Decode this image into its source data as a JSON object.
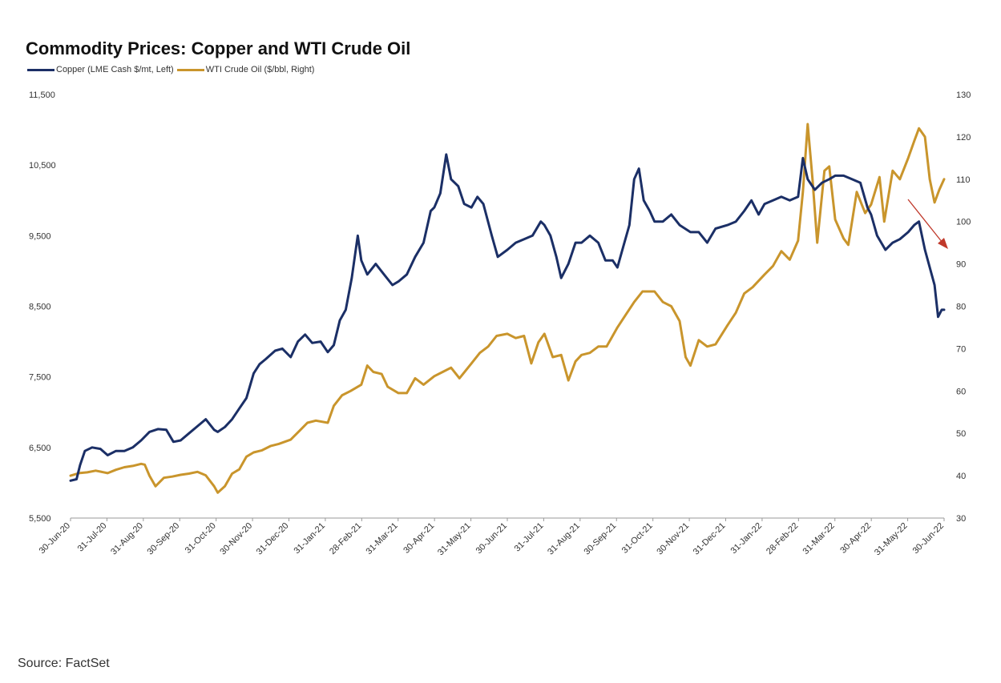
{
  "chart_data": {
    "type": "line",
    "title": "Commodity Prices: Copper and WTI Crude Oil",
    "xlabel": "",
    "ylabel_left": "",
    "ylabel_right": "",
    "grid": false,
    "legend_position": "top-left",
    "x_tick_labels": [
      "30-Jun-20",
      "31-Jul-20",
      "31-Aug-20",
      "30-Sep-20",
      "31-Oct-20",
      "30-Nov-20",
      "31-Dec-20",
      "31-Jan-21",
      "28-Feb-21",
      "31-Mar-21",
      "30-Apr-21",
      "31-May-21",
      "30-Jun-21",
      "31-Jul-21",
      "31-Aug-21",
      "30-Sep-21",
      "31-Oct-21",
      "30-Nov-21",
      "31-Dec-21",
      "31-Jan-22",
      "28-Feb-22",
      "31-Mar-22",
      "30-Apr-22",
      "31-May-22",
      "30-Jun-22"
    ],
    "y_left": {
      "ticks": [
        "5,500",
        "6,500",
        "7,500",
        "8,500",
        "9,500",
        "10,500",
        "11,500"
      ],
      "lim": [
        5500,
        11500
      ]
    },
    "y_right": {
      "ticks": [
        "30",
        "40",
        "50",
        "60",
        "70",
        "80",
        "90",
        "100",
        "110",
        "120",
        "130"
      ],
      "lim": [
        30,
        130
      ]
    },
    "series": [
      {
        "name": "Copper (LME Cash $/mt, Left)",
        "axis": "left",
        "color": "#1b2f66",
        "points": [
          [
            "2020-06-30",
            6030
          ],
          [
            "2020-07-05",
            6050
          ],
          [
            "2020-07-08",
            6250
          ],
          [
            "2020-07-12",
            6450
          ],
          [
            "2020-07-18",
            6500
          ],
          [
            "2020-07-25",
            6480
          ],
          [
            "2020-07-31",
            6390
          ],
          [
            "2020-08-07",
            6450
          ],
          [
            "2020-08-14",
            6450
          ],
          [
            "2020-08-21",
            6500
          ],
          [
            "2020-08-28",
            6600
          ],
          [
            "2020-09-04",
            6720
          ],
          [
            "2020-09-11",
            6760
          ],
          [
            "2020-09-18",
            6750
          ],
          [
            "2020-09-24",
            6580
          ],
          [
            "2020-09-30",
            6600
          ],
          [
            "2020-10-07",
            6700
          ],
          [
            "2020-10-14",
            6800
          ],
          [
            "2020-10-21",
            6900
          ],
          [
            "2020-10-28",
            6750
          ],
          [
            "2020-10-31",
            6720
          ],
          [
            "2020-11-06",
            6790
          ],
          [
            "2020-11-12",
            6900
          ],
          [
            "2020-11-18",
            7050
          ],
          [
            "2020-11-24",
            7200
          ],
          [
            "2020-11-30",
            7550
          ],
          [
            "2020-12-05",
            7680
          ],
          [
            "2020-12-10",
            7750
          ],
          [
            "2020-12-18",
            7870
          ],
          [
            "2020-12-24",
            7900
          ],
          [
            "2020-12-31",
            7780
          ],
          [
            "2021-01-06",
            8000
          ],
          [
            "2021-01-12",
            8100
          ],
          [
            "2021-01-18",
            7980
          ],
          [
            "2021-01-25",
            8000
          ],
          [
            "2021-01-31",
            7850
          ],
          [
            "2021-02-05",
            7950
          ],
          [
            "2021-02-10",
            8300
          ],
          [
            "2021-02-15",
            8450
          ],
          [
            "2021-02-20",
            8900
          ],
          [
            "2021-02-25",
            9500
          ],
          [
            "2021-02-28",
            9150
          ],
          [
            "2021-03-05",
            8950
          ],
          [
            "2021-03-12",
            9100
          ],
          [
            "2021-03-19",
            8950
          ],
          [
            "2021-03-26",
            8800
          ],
          [
            "2021-03-31",
            8850
          ],
          [
            "2021-04-07",
            8950
          ],
          [
            "2021-04-14",
            9200
          ],
          [
            "2021-04-21",
            9400
          ],
          [
            "2021-04-27",
            9850
          ],
          [
            "2021-04-30",
            9900
          ],
          [
            "2021-05-05",
            10100
          ],
          [
            "2021-05-10",
            10650
          ],
          [
            "2021-05-14",
            10300
          ],
          [
            "2021-05-20",
            10200
          ],
          [
            "2021-05-25",
            9950
          ],
          [
            "2021-05-31",
            9900
          ],
          [
            "2021-06-05",
            10050
          ],
          [
            "2021-06-10",
            9950
          ],
          [
            "2021-06-17",
            9500
          ],
          [
            "2021-06-22",
            9200
          ],
          [
            "2021-06-30",
            9300
          ],
          [
            "2021-07-07",
            9400
          ],
          [
            "2021-07-14",
            9450
          ],
          [
            "2021-07-21",
            9500
          ],
          [
            "2021-07-28",
            9700
          ],
          [
            "2021-07-31",
            9650
          ],
          [
            "2021-08-05",
            9500
          ],
          [
            "2021-08-10",
            9200
          ],
          [
            "2021-08-14",
            8900
          ],
          [
            "2021-08-20",
            9100
          ],
          [
            "2021-08-26",
            9400
          ],
          [
            "2021-08-31",
            9400
          ],
          [
            "2021-09-07",
            9500
          ],
          [
            "2021-09-14",
            9400
          ],
          [
            "2021-09-20",
            9150
          ],
          [
            "2021-09-26",
            9150
          ],
          [
            "2021-09-30",
            9050
          ],
          [
            "2021-10-05",
            9350
          ],
          [
            "2021-10-10",
            9650
          ],
          [
            "2021-10-14",
            10300
          ],
          [
            "2021-10-18",
            10450
          ],
          [
            "2021-10-22",
            10000
          ],
          [
            "2021-10-27",
            9850
          ],
          [
            "2021-10-31",
            9700
          ],
          [
            "2021-11-07",
            9700
          ],
          [
            "2021-11-14",
            9800
          ],
          [
            "2021-11-21",
            9650
          ],
          [
            "2021-11-30",
            9550
          ],
          [
            "2021-12-07",
            9550
          ],
          [
            "2021-12-14",
            9400
          ],
          [
            "2021-12-21",
            9600
          ],
          [
            "2021-12-31",
            9650
          ],
          [
            "2022-01-07",
            9700
          ],
          [
            "2022-01-14",
            9850
          ],
          [
            "2022-01-20",
            10000
          ],
          [
            "2022-01-26",
            9800
          ],
          [
            "2022-01-31",
            9950
          ],
          [
            "2022-02-07",
            10000
          ],
          [
            "2022-02-14",
            10050
          ],
          [
            "2022-02-21",
            10000
          ],
          [
            "2022-02-28",
            10050
          ],
          [
            "2022-03-04",
            10600
          ],
          [
            "2022-03-08",
            10300
          ],
          [
            "2022-03-14",
            10150
          ],
          [
            "2022-03-20",
            10250
          ],
          [
            "2022-03-26",
            10300
          ],
          [
            "2022-03-31",
            10350
          ],
          [
            "2022-04-07",
            10350
          ],
          [
            "2022-04-14",
            10300
          ],
          [
            "2022-04-21",
            10250
          ],
          [
            "2022-04-27",
            9900
          ],
          [
            "2022-04-30",
            9800
          ],
          [
            "2022-05-05",
            9500
          ],
          [
            "2022-05-12",
            9300
          ],
          [
            "2022-05-18",
            9400
          ],
          [
            "2022-05-24",
            9450
          ],
          [
            "2022-05-31",
            9550
          ],
          [
            "2022-06-05",
            9650
          ],
          [
            "2022-06-09",
            9700
          ],
          [
            "2022-06-14",
            9300
          ],
          [
            "2022-06-18",
            9050
          ],
          [
            "2022-06-22",
            8800
          ],
          [
            "2022-06-25",
            8350
          ],
          [
            "2022-06-28",
            8450
          ],
          [
            "2022-06-30",
            8450
          ]
        ]
      },
      {
        "name": "WTI Crude Oil ($/bbl, Right)",
        "axis": "right",
        "color": "#c9952c",
        "points": [
          [
            "2020-06-30",
            40
          ],
          [
            "2020-07-07",
            40.6
          ],
          [
            "2020-07-14",
            40.8
          ],
          [
            "2020-07-21",
            41.2
          ],
          [
            "2020-07-31",
            40.6
          ],
          [
            "2020-08-07",
            41.4
          ],
          [
            "2020-08-14",
            42
          ],
          [
            "2020-08-21",
            42.3
          ],
          [
            "2020-08-28",
            42.8
          ],
          [
            "2020-08-31",
            42.6
          ],
          [
            "2020-09-04",
            40
          ],
          [
            "2020-09-09",
            37.5
          ],
          [
            "2020-09-16",
            39.5
          ],
          [
            "2020-09-23",
            39.8
          ],
          [
            "2020-09-30",
            40.2
          ],
          [
            "2020-10-07",
            40.5
          ],
          [
            "2020-10-14",
            40.9
          ],
          [
            "2020-10-21",
            40.1
          ],
          [
            "2020-10-28",
            37.5
          ],
          [
            "2020-10-31",
            36
          ],
          [
            "2020-11-06",
            37.5
          ],
          [
            "2020-11-12",
            40.5
          ],
          [
            "2020-11-18",
            41.5
          ],
          [
            "2020-11-24",
            44.5
          ],
          [
            "2020-11-30",
            45.5
          ],
          [
            "2020-12-07",
            46
          ],
          [
            "2020-12-14",
            47
          ],
          [
            "2020-12-21",
            47.5
          ],
          [
            "2020-12-31",
            48.5
          ],
          [
            "2021-01-07",
            50.5
          ],
          [
            "2021-01-14",
            52.5
          ],
          [
            "2021-01-21",
            53
          ],
          [
            "2021-01-31",
            52.5
          ],
          [
            "2021-02-05",
            56.5
          ],
          [
            "2021-02-12",
            59
          ],
          [
            "2021-02-19",
            60
          ],
          [
            "2021-02-28",
            61.5
          ],
          [
            "2021-03-05",
            66
          ],
          [
            "2021-03-10",
            64.5
          ],
          [
            "2021-03-17",
            64
          ],
          [
            "2021-03-22",
            61
          ],
          [
            "2021-03-31",
            59.5
          ],
          [
            "2021-04-07",
            59.5
          ],
          [
            "2021-04-14",
            63
          ],
          [
            "2021-04-21",
            61.5
          ],
          [
            "2021-04-30",
            63.5
          ],
          [
            "2021-05-07",
            64.5
          ],
          [
            "2021-05-14",
            65.5
          ],
          [
            "2021-05-21",
            63
          ],
          [
            "2021-05-31",
            66.5
          ],
          [
            "2021-06-07",
            69
          ],
          [
            "2021-06-14",
            70.5
          ],
          [
            "2021-06-21",
            73
          ],
          [
            "2021-06-30",
            73.5
          ],
          [
            "2021-07-07",
            72.5
          ],
          [
            "2021-07-14",
            73
          ],
          [
            "2021-07-20",
            66.5
          ],
          [
            "2021-07-26",
            71.5
          ],
          [
            "2021-07-31",
            73.5
          ],
          [
            "2021-08-07",
            68
          ],
          [
            "2021-08-14",
            68.5
          ],
          [
            "2021-08-20",
            62.5
          ],
          [
            "2021-08-26",
            67
          ],
          [
            "2021-08-31",
            68.5
          ],
          [
            "2021-09-07",
            69
          ],
          [
            "2021-09-14",
            70.5
          ],
          [
            "2021-09-21",
            70.5
          ],
          [
            "2021-09-30",
            75
          ],
          [
            "2021-10-07",
            78
          ],
          [
            "2021-10-14",
            81
          ],
          [
            "2021-10-21",
            83.5
          ],
          [
            "2021-10-31",
            83.5
          ],
          [
            "2021-11-07",
            81
          ],
          [
            "2021-11-14",
            80
          ],
          [
            "2021-11-21",
            76.5
          ],
          [
            "2021-11-26",
            68
          ],
          [
            "2021-11-30",
            66
          ],
          [
            "2021-12-07",
            72
          ],
          [
            "2021-12-14",
            70.5
          ],
          [
            "2021-12-21",
            71
          ],
          [
            "2021-12-31",
            75.5
          ],
          [
            "2022-01-07",
            78.5
          ],
          [
            "2022-01-14",
            83
          ],
          [
            "2022-01-21",
            84.5
          ],
          [
            "2022-01-31",
            87.5
          ],
          [
            "2022-02-07",
            89.5
          ],
          [
            "2022-02-14",
            93
          ],
          [
            "2022-02-21",
            91
          ],
          [
            "2022-02-28",
            95.5
          ],
          [
            "2022-03-04",
            107
          ],
          [
            "2022-03-08",
            123
          ],
          [
            "2022-03-12",
            110
          ],
          [
            "2022-03-16",
            95
          ],
          [
            "2022-03-22",
            112
          ],
          [
            "2022-03-26",
            113
          ],
          [
            "2022-03-31",
            100.5
          ],
          [
            "2022-04-07",
            96
          ],
          [
            "2022-04-11",
            94.5
          ],
          [
            "2022-04-18",
            107
          ],
          [
            "2022-04-25",
            102
          ],
          [
            "2022-04-30",
            104
          ],
          [
            "2022-05-07",
            110.5
          ],
          [
            "2022-05-11",
            100
          ],
          [
            "2022-05-18",
            112
          ],
          [
            "2022-05-24",
            110
          ],
          [
            "2022-05-31",
            115
          ],
          [
            "2022-06-05",
            119
          ],
          [
            "2022-06-09",
            122
          ],
          [
            "2022-06-14",
            120
          ],
          [
            "2022-06-18",
            110
          ],
          [
            "2022-06-22",
            104.5
          ],
          [
            "2022-06-26",
            107.5
          ],
          [
            "2022-06-30",
            110
          ]
        ]
      }
    ]
  },
  "legend": [
    {
      "label": "Copper (LME Cash $/mt, Left)",
      "color": "#1b2f66"
    },
    {
      "label": "WTI Crude Oil ($/bbl, Right)",
      "color": "#c9952c"
    }
  ],
  "annotation": {
    "type": "arrow",
    "color": "#c0392b"
  },
  "source": "Source: FactSet"
}
